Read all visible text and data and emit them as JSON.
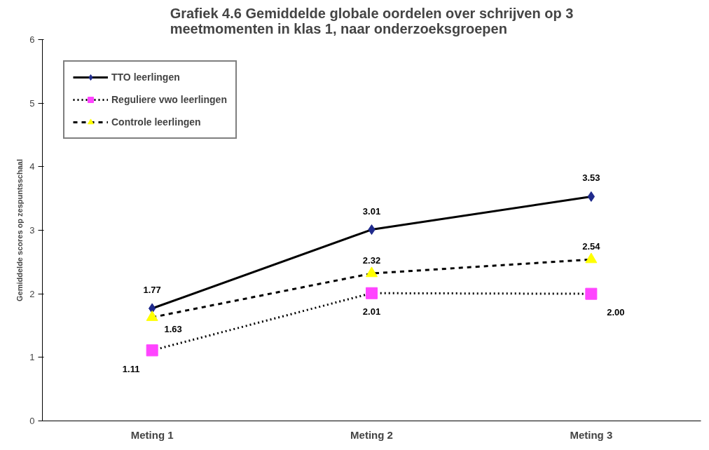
{
  "chart_data": {
    "type": "line",
    "title": "Grafiek 4.6 Gemiddelde globale oordelen over schrijven op 3\nmeetmomenten in klas 1, naar onderzoeksgroepen",
    "ylabel": "Gemiddelde scores op zespuntsschaal",
    "categories": [
      "Meting 1",
      "Meting 2",
      "Meting 3"
    ],
    "series": [
      {
        "name": "TTO leerlingen",
        "color": "#1f2a8c",
        "values": [
          1.77,
          3.01,
          3.53
        ],
        "value_labels": [
          "1.77",
          "3.01",
          "3.53"
        ],
        "marker": "diamond",
        "line_style": "solid"
      },
      {
        "name": "Reguliere vwo leerlingen",
        "color": "#ff44ff",
        "values": [
          1.11,
          2.01,
          2.0
        ],
        "value_labels": [
          "1.11",
          "2.01",
          "2.00"
        ],
        "marker": "square",
        "line_style": "dotted"
      },
      {
        "name": "Controle leerlingen",
        "color": "#ffff00",
        "values": [
          1.63,
          2.32,
          2.54
        ],
        "value_labels": [
          "1.63",
          "2.32",
          "2.54"
        ],
        "marker": "triangle",
        "line_style": "dashed"
      }
    ],
    "ylim": [
      0,
      6
    ],
    "yticks": [
      0,
      1,
      2,
      3,
      4,
      5,
      6
    ],
    "grid": false,
    "legend": "top left"
  }
}
